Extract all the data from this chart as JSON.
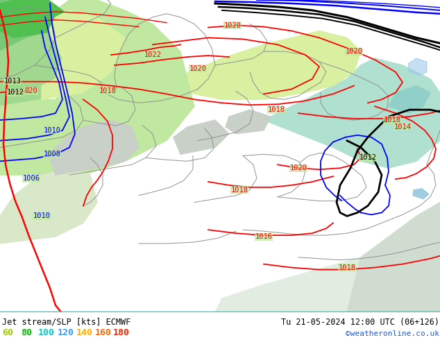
{
  "title_left": "Jet stream/SLP [kts] ECMWF",
  "title_right": "Tu 21-05-2024 12:00 UTC (06+126)",
  "credit": "©weatheronline.co.uk",
  "legend_values": [
    "60",
    "80",
    "100",
    "120",
    "140",
    "160",
    "180"
  ],
  "legend_colors": [
    "#99cc00",
    "#00bb00",
    "#00cccc",
    "#3399ff",
    "#ffaa00",
    "#ff6600",
    "#ff2200"
  ],
  "fig_width": 6.34,
  "fig_height": 4.9,
  "dpi": 100,
  "bottom_bar_color": "#ffffff",
  "map_bg": "#c8e8b0",
  "sea_color": "#e0ede0",
  "land_green_dark": "#78c878",
  "land_green_mid": "#a0d890",
  "land_green_light": "#c0e8a0",
  "land_yellow_green": "#d8f0a0",
  "land_cyan_light": "#b0e0d0",
  "land_cyan": "#90d0c8",
  "gray_area": "#c8d0c8"
}
